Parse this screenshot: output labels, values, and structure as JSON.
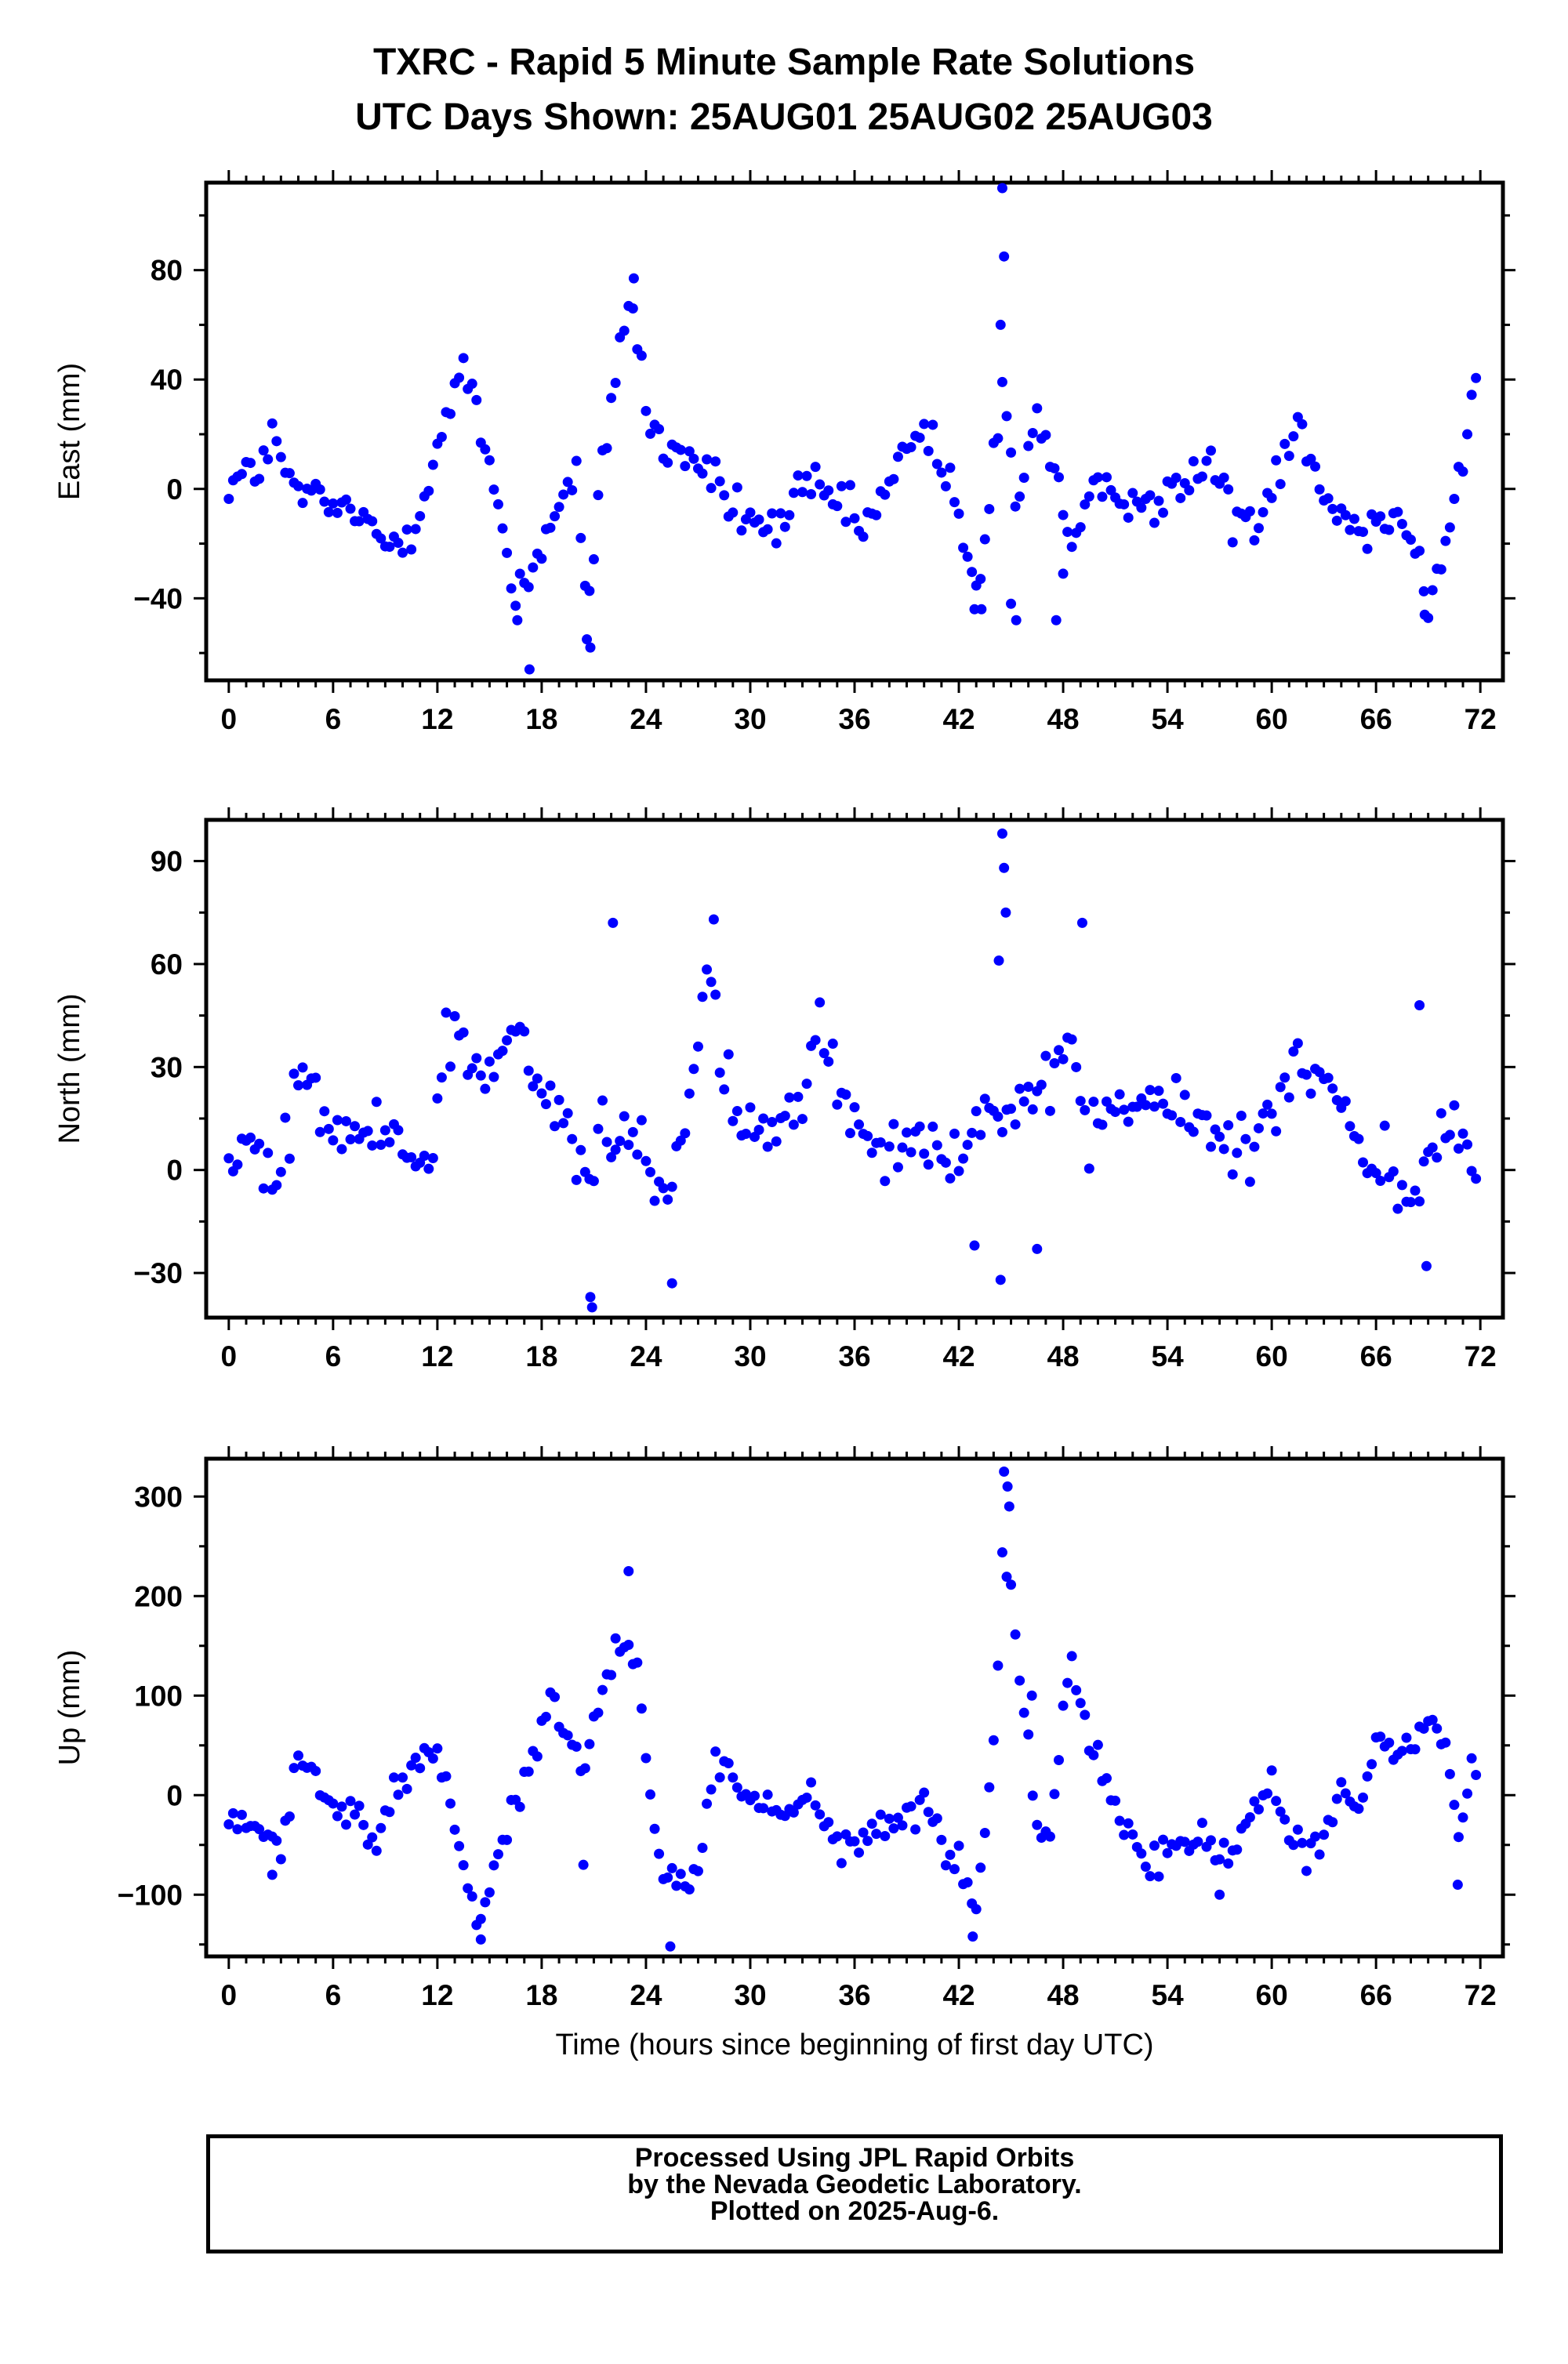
{
  "title": "TXRC - Rapid 5 Minute Sample Rate Solutions",
  "subtitle": "UTC Days Shown:  25AUG01 25AUG02 25AUG03",
  "footer": {
    "line1": "Processed Using JPL Rapid Orbits",
    "line2": "by the Nevada Geodetic Laboratory.",
    "line3": "Plotted on 2025-Aug-6."
  },
  "colors": {
    "points": "#0000ff",
    "frame": "#000000"
  },
  "chart_data": [
    {
      "type": "scatter",
      "ylabel": "East (mm)",
      "xlabel": "",
      "xlim": [
        -1.3,
        73.3
      ],
      "ylim": [
        -70,
        112
      ],
      "xticks": [
        "0",
        "6",
        "12",
        "18",
        "24",
        "30",
        "36",
        "42",
        "48",
        "54",
        "60",
        "66",
        "72"
      ],
      "yticks": [
        {
          "v": -40,
          "label": "−40"
        },
        {
          "v": 0,
          "label": "0"
        },
        {
          "v": 40,
          "label": "40"
        },
        {
          "v": 80,
          "label": "80"
        }
      ],
      "series": [
        {
          "anchors": [
            [
              0,
              2
            ],
            [
              1.5,
              6
            ],
            [
              2.5,
              18
            ],
            [
              3.5,
              2
            ],
            [
              5,
              -5
            ],
            [
              7,
              -8
            ],
            [
              9,
              -20
            ],
            [
              10.5,
              -15
            ],
            [
              11.5,
              5
            ],
            [
              12.5,
              25
            ],
            [
              13.5,
              45
            ],
            [
              14.5,
              20
            ],
            [
              15.5,
              -5
            ],
            [
              16.5,
              -40
            ],
            [
              17.5,
              -28
            ],
            [
              18.5,
              -12
            ],
            [
              20,
              5
            ],
            [
              20.7,
              -50
            ],
            [
              21.5,
              10
            ],
            [
              22.5,
              55
            ],
            [
              23.3,
              68
            ],
            [
              24,
              28
            ],
            [
              25,
              15
            ],
            [
              27,
              10
            ],
            [
              28.5,
              -3
            ],
            [
              30,
              -12
            ],
            [
              31.5,
              -15
            ],
            [
              33,
              0
            ],
            [
              35,
              -5
            ],
            [
              36.5,
              -15
            ],
            [
              38,
              0
            ],
            [
              39.5,
              22
            ],
            [
              40.5,
              18
            ],
            [
              41.5,
              0
            ],
            [
              42.5,
              -28
            ],
            [
              43.2,
              -38
            ],
            [
              44,
              10
            ],
            [
              44.6,
              45
            ],
            [
              45.2,
              -5
            ],
            [
              46.5,
              25
            ],
            [
              47.5,
              10
            ],
            [
              48.5,
              -25
            ],
            [
              49.5,
              -5
            ],
            [
              51,
              0
            ],
            [
              53,
              -5
            ],
            [
              55,
              0
            ],
            [
              56.5,
              12
            ],
            [
              57.5,
              -8
            ],
            [
              59,
              -12
            ],
            [
              60.5,
              10
            ],
            [
              61.5,
              28
            ],
            [
              62.5,
              5
            ],
            [
              64,
              -10
            ],
            [
              66,
              -15
            ],
            [
              67.5,
              -5
            ],
            [
              68.5,
              -25
            ],
            [
              69,
              -45
            ],
            [
              70.5,
              -5
            ],
            [
              71.5,
              30
            ],
            [
              72,
              42
            ]
          ],
          "noise": 6,
          "outliers": [
            [
              44.5,
              110
            ],
            [
              44.6,
              85
            ],
            [
              44.4,
              60
            ],
            [
              17.3,
              -66
            ],
            [
              20.8,
              -58
            ],
            [
              20.6,
              -55
            ],
            [
              45.3,
              -48
            ],
            [
              47.6,
              -48
            ],
            [
              42.9,
              -44
            ],
            [
              43.3,
              -44
            ],
            [
              16.6,
              -48
            ],
            [
              68.8,
              -46
            ],
            [
              23.3,
              77
            ],
            [
              45,
              -42
            ],
            [
              48,
              -31
            ]
          ]
        }
      ]
    },
    {
      "type": "scatter",
      "ylabel": "North (mm)",
      "xlabel": "",
      "xlim": [
        -1.3,
        73.3
      ],
      "ylim": [
        -43,
        102
      ],
      "xticks": [
        "0",
        "6",
        "12",
        "18",
        "24",
        "30",
        "36",
        "42",
        "48",
        "54",
        "60",
        "66",
        "72"
      ],
      "yticks": [
        {
          "v": -30,
          "label": "−30"
        },
        {
          "v": 0,
          "label": "0"
        },
        {
          "v": 30,
          "label": "30"
        },
        {
          "v": 60,
          "label": "60"
        },
        {
          "v": 90,
          "label": "90"
        }
      ],
      "series": [
        {
          "anchors": [
            [
              0,
              5
            ],
            [
              1.5,
              5
            ],
            [
              2.5,
              -5
            ],
            [
              3.5,
              10
            ],
            [
              4.2,
              35
            ],
            [
              5,
              20
            ],
            [
              6,
              12
            ],
            [
              7.5,
              8
            ],
            [
              9,
              12
            ],
            [
              10.5,
              8
            ],
            [
              11.5,
              2
            ],
            [
              12.5,
              40
            ],
            [
              13.5,
              35
            ],
            [
              14.5,
              30
            ],
            [
              15.5,
              28
            ],
            [
              16.5,
              45
            ],
            [
              17.5,
              25
            ],
            [
              18.5,
              18
            ],
            [
              19.5,
              15
            ],
            [
              20.5,
              -5
            ],
            [
              21.5,
              10
            ],
            [
              22.5,
              5
            ],
            [
              23.5,
              15
            ],
            [
              24.5,
              -10
            ],
            [
              25.5,
              0
            ],
            [
              26.5,
              20
            ],
            [
              27.5,
              60
            ],
            [
              28.5,
              20
            ],
            [
              30,
              12
            ],
            [
              31.5,
              10
            ],
            [
              33,
              20
            ],
            [
              34,
              48
            ],
            [
              35,
              25
            ],
            [
              36.5,
              12
            ],
            [
              37.5,
              10
            ],
            [
              39,
              8
            ],
            [
              40.5,
              10
            ],
            [
              42,
              5
            ],
            [
              43,
              15
            ],
            [
              44,
              15
            ],
            [
              45,
              20
            ],
            [
              46.5,
              15
            ],
            [
              47.5,
              25
            ],
            [
              48.5,
              40
            ],
            [
              49.5,
              10
            ],
            [
              51,
              18
            ],
            [
              52.5,
              20
            ],
            [
              54,
              18
            ],
            [
              55.5,
              15
            ],
            [
              57,
              10
            ],
            [
              58.5,
              5
            ],
            [
              60,
              20
            ],
            [
              61,
              30
            ],
            [
              62.5,
              28
            ],
            [
              63.5,
              22
            ],
            [
              64.5,
              15
            ],
            [
              65.5,
              -5
            ],
            [
              66.5,
              5
            ],
            [
              67.5,
              -5
            ],
            [
              68.5,
              -10
            ],
            [
              69.5,
              10
            ],
            [
              70.5,
              15
            ],
            [
              71.5,
              -2
            ]
          ],
          "noise": 7,
          "outliers": [
            [
              44.5,
              98
            ],
            [
              44.6,
              88
            ],
            [
              44.7,
              75
            ],
            [
              44.3,
              61
            ],
            [
              22.1,
              72
            ],
            [
              27.9,
              73
            ],
            [
              49.1,
              72
            ],
            [
              68.5,
              48
            ],
            [
              20.8,
              -37
            ],
            [
              20.9,
              -40
            ],
            [
              25.5,
              -33
            ],
            [
              44.4,
              -32
            ],
            [
              46.5,
              -23
            ],
            [
              68.9,
              -28
            ],
            [
              42.9,
              -22
            ]
          ]
        }
      ]
    },
    {
      "type": "scatter",
      "ylabel": "Up (mm)",
      "xlabel": "Time (hours since beginning of first day UTC)",
      "xlim": [
        -1.3,
        73.3
      ],
      "ylim": [
        -162,
        338
      ],
      "xticks": [
        "0",
        "6",
        "12",
        "18",
        "24",
        "30",
        "36",
        "42",
        "48",
        "54",
        "60",
        "66",
        "72"
      ],
      "yticks": [
        {
          "v": -100,
          "label": "−100"
        },
        {
          "v": 0,
          "label": "0"
        },
        {
          "v": 100,
          "label": "100"
        },
        {
          "v": 200,
          "label": "200"
        },
        {
          "v": 300,
          "label": "300"
        }
      ],
      "series": [
        {
          "anchors": [
            [
              0,
              -20
            ],
            [
              1,
              -25
            ],
            [
              2,
              -40
            ],
            [
              3,
              -55
            ],
            [
              4,
              40
            ],
            [
              5,
              10
            ],
            [
              6,
              -15
            ],
            [
              7.5,
              -25
            ],
            [
              8.5,
              -45
            ],
            [
              9.5,
              5
            ],
            [
              10.5,
              25
            ],
            [
              11.5,
              50
            ],
            [
              12.5,
              25
            ],
            [
              13.5,
              -80
            ],
            [
              14.5,
              -120
            ],
            [
              15.5,
              -60
            ],
            [
              16.5,
              -10
            ],
            [
              17.5,
              40
            ],
            [
              18.5,
              100
            ],
            [
              19.5,
              60
            ],
            [
              20.5,
              30
            ],
            [
              21.5,
              110
            ],
            [
              22.5,
              150
            ],
            [
              23.5,
              150
            ],
            [
              24,
              40
            ],
            [
              25,
              -80
            ],
            [
              26,
              -90
            ],
            [
              27,
              -85
            ],
            [
              28,
              40
            ],
            [
              29,
              20
            ],
            [
              30,
              -10
            ],
            [
              31,
              -5
            ],
            [
              32,
              -20
            ],
            [
              33.5,
              0
            ],
            [
              35,
              -55
            ],
            [
              36.5,
              -45
            ],
            [
              37.5,
              -30
            ],
            [
              39,
              -25
            ],
            [
              40,
              0
            ],
            [
              41,
              -50
            ],
            [
              42,
              -70
            ],
            [
              43,
              -110
            ],
            [
              43.5,
              -40
            ],
            [
              44,
              50
            ],
            [
              44.5,
              230
            ],
            [
              45,
              220
            ],
            [
              45.5,
              120
            ],
            [
              46,
              50
            ],
            [
              46.5,
              -30
            ],
            [
              47.3,
              -40
            ],
            [
              48,
              90
            ],
            [
              48.5,
              140
            ],
            [
              49.5,
              50
            ],
            [
              50.5,
              10
            ],
            [
              51.5,
              -30
            ],
            [
              52.5,
              -60
            ],
            [
              53.5,
              -65
            ],
            [
              55,
              -50
            ],
            [
              56,
              -40
            ],
            [
              57,
              -65
            ],
            [
              58,
              -50
            ],
            [
              59,
              -10
            ],
            [
              60,
              15
            ],
            [
              61,
              -30
            ],
            [
              62,
              -60
            ],
            [
              63,
              -40
            ],
            [
              64,
              10
            ],
            [
              65,
              -20
            ],
            [
              66,
              50
            ],
            [
              67,
              35
            ],
            [
              68,
              50
            ],
            [
              69,
              80
            ],
            [
              70,
              60
            ],
            [
              70.7,
              -45
            ],
            [
              71.5,
              20
            ]
          ],
          "noise": 12,
          "outliers": [
            [
              44.6,
              325
            ],
            [
              44.8,
              310
            ],
            [
              44.9,
              290
            ],
            [
              25.4,
              -152
            ],
            [
              42.8,
              -142
            ],
            [
              14.5,
              -145
            ],
            [
              23,
              225
            ],
            [
              46.2,
              100
            ],
            [
              70.7,
              -90
            ],
            [
              57,
              -100
            ],
            [
              20.4,
              -70
            ],
            [
              2.5,
              -80
            ]
          ]
        }
      ]
    }
  ]
}
